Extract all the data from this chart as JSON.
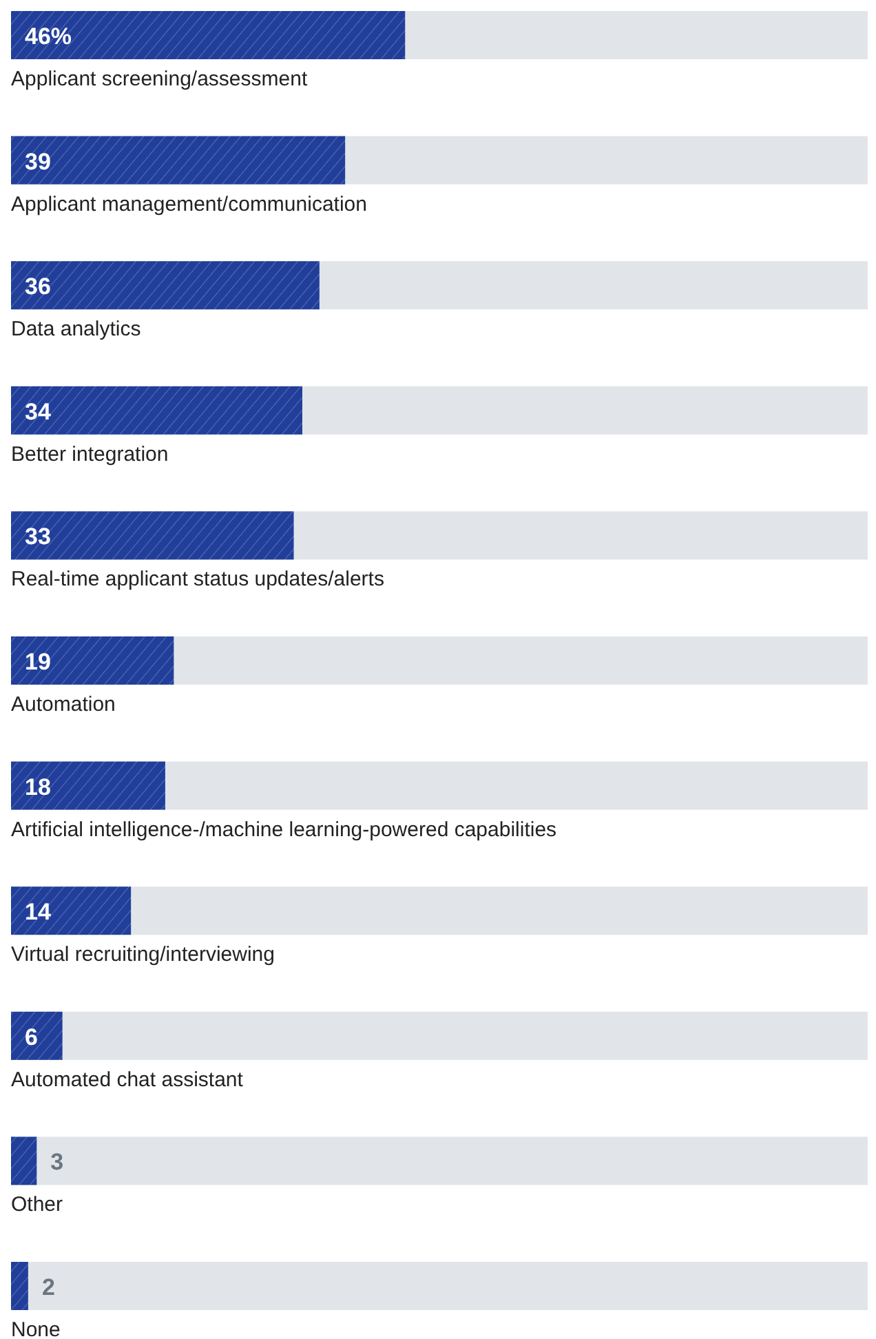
{
  "chart_data": {
    "type": "bar",
    "orientation": "horizontal",
    "categories": [
      "Applicant screening/assessment",
      "Applicant management/communication",
      "Data analytics",
      "Better integration",
      "Real-time applicant status updates/alerts",
      "Automation",
      "Artificial intelligence-/machine learning-powered capabilities",
      "Virtual recruiting/interviewing",
      "Automated chat assistant",
      "Other",
      "None"
    ],
    "values": [
      46,
      39,
      36,
      34,
      33,
      19,
      18,
      14,
      6,
      3,
      2
    ],
    "value_labels": [
      "46%",
      "39",
      "36",
      "34",
      "33",
      "19",
      "18",
      "14",
      "6",
      "3",
      "2"
    ],
    "color": "#213f9a",
    "xlim": [
      0,
      100
    ]
  }
}
